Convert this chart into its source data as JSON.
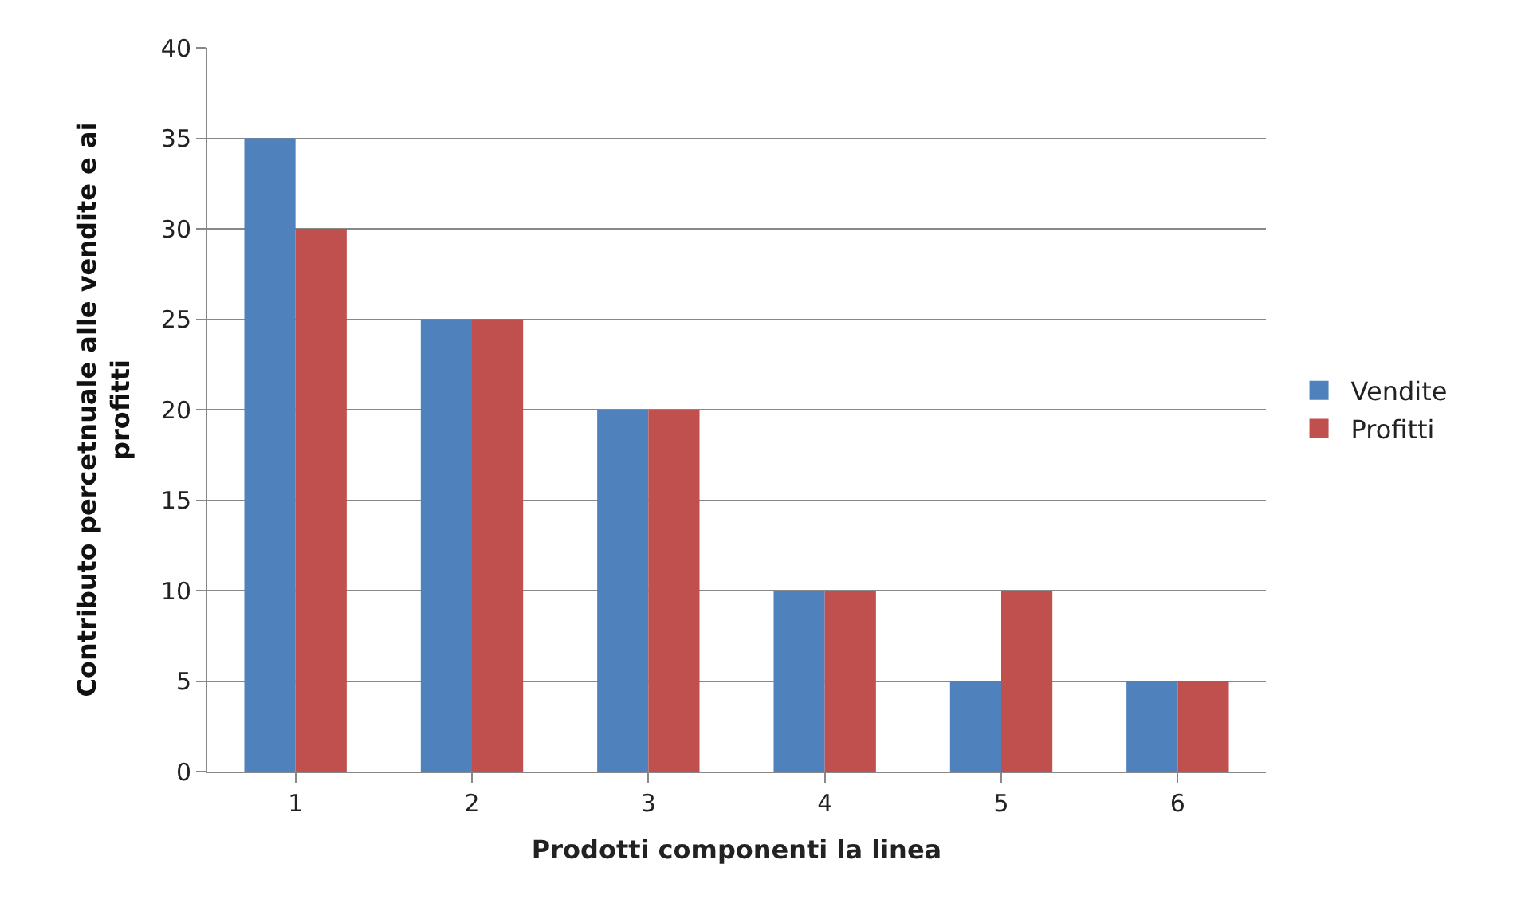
{
  "chart_data": {
    "type": "bar",
    "xlabel": "Prodotti componenti la linea",
    "ylabel": "Contributo percetnuale alle vendite e ai profitti",
    "categories": [
      "1",
      "2",
      "3",
      "4",
      "5",
      "6"
    ],
    "series": [
      {
        "name": "Vendite",
        "color": "#4f81bd",
        "values": [
          35,
          25,
          20,
          10,
          5,
          5
        ]
      },
      {
        "name": "Profitti",
        "color": "#c0504d",
        "values": [
          30,
          25,
          20,
          10,
          10,
          5
        ]
      }
    ],
    "ylim": [
      0,
      40
    ],
    "yticks": [
      0,
      5,
      10,
      15,
      20,
      25,
      30,
      35,
      40
    ],
    "grid": "y",
    "legend": "right"
  }
}
